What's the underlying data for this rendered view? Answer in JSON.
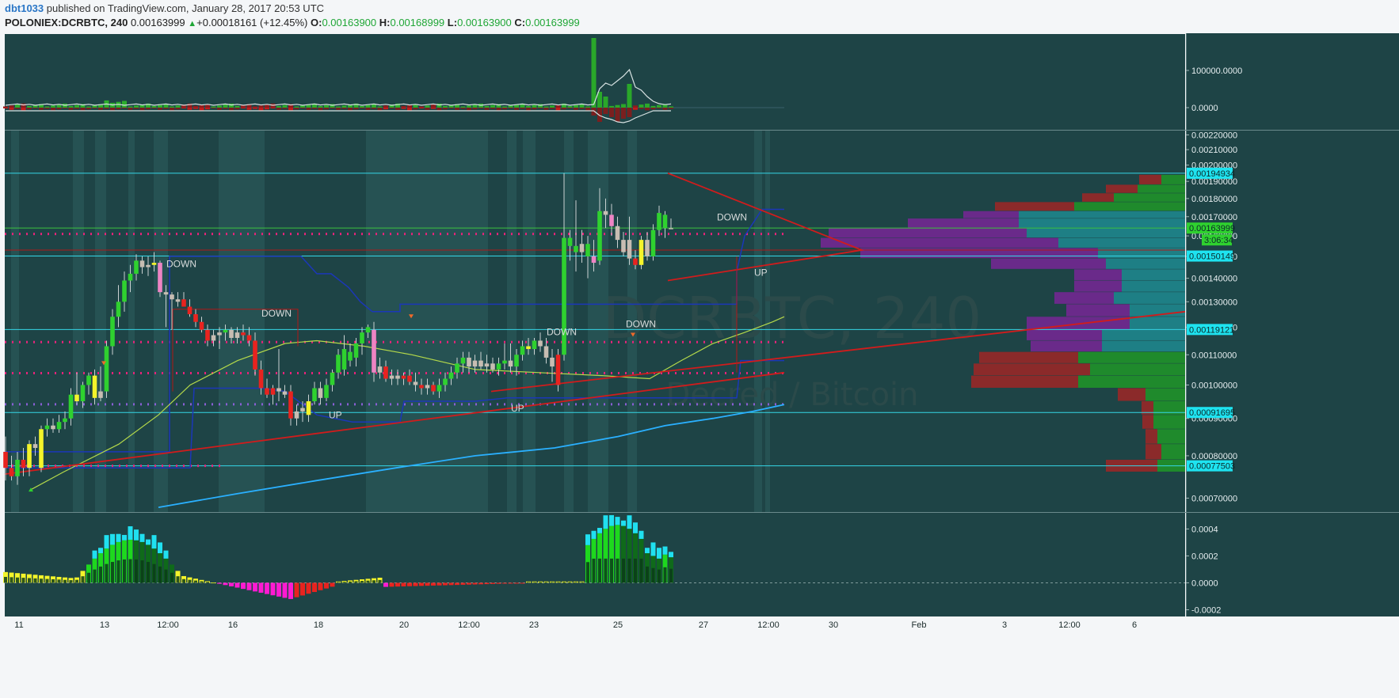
{
  "header": {
    "author": "dbt1033",
    "published_text": "published on TradingView.com, January 28, 2017 20:53 UTC",
    "symbol_interval": "POLONIEX:DCRBTC, 240",
    "last": "0.00163999",
    "change_arrow": "▲",
    "change": "+0.00018161 (+12.45%)",
    "o_label": "O:",
    "o_value": "0.00163900",
    "h_label": "H:",
    "h_value": "0.00168999",
    "l_label": "L:",
    "l_value": "0.00163900",
    "c_label": "C:",
    "c_value": "0.00163999"
  },
  "watermark": {
    "symbol": "DCRBTC, 240",
    "description": "Decred / Bitcoin"
  },
  "colors": {
    "panel_bg": "#1e4446",
    "band": "#2b5a5a",
    "up": "#2fd12f",
    "down": "#e8231f",
    "neutral": "#c7bdb2",
    "yellow": "#f4f42a",
    "pink": "#ee84c4",
    "cyan_line": "#35d6e6",
    "dark_blue": "#1b37b8",
    "light_blue": "#2ab0ff",
    "olive": "#b4d94a",
    "trend_red": "#d11c1c"
  },
  "chart_data": [
    {
      "panel": "price",
      "type": "candlestick",
      "yscale": "log",
      "ylim": [
        0.00067,
        0.00223
      ],
      "y_ticks": [
        "0.00220000",
        "0.00210000",
        "0.00200000",
        "0.00190000",
        "0.00180000",
        "0.00170000",
        "0.00160000",
        "0.00150000",
        "0.00140000",
        "0.00130000",
        "0.00120000",
        "0.00110000",
        "0.00100000",
        "0.00090000",
        "0.00080000",
        "0.00070000"
      ],
      "x_ticks": [
        "11",
        "13",
        "12:00",
        "16",
        "18",
        "20",
        "12:00",
        "23",
        "25",
        "27",
        "12:00",
        "30",
        "Feb",
        "3",
        "12:00",
        "6"
      ],
      "price_tags": [
        {
          "value": 0.00194934,
          "label": "0.00194934"
        },
        {
          "value": 0.00163999,
          "label": "0.00163999"
        },
        {
          "value": 0.00150149,
          "label": "0.00150149"
        },
        {
          "value": 0.00119121,
          "label": "0.00119121"
        },
        {
          "value": 0.00091695,
          "label": "0.00091695"
        },
        {
          "value": 0.00077503,
          "label": "0.00077503"
        }
      ],
      "countdown": "3:06:34",
      "annotations": [
        "DOWN",
        "DOWN",
        "UP",
        "DOWN",
        "UP",
        "DOWN",
        "DOWN",
        "UP"
      ],
      "candles_first_x": 7,
      "candle_spacing": 7.5,
      "candles": [
        {
          "o": 0.00081,
          "h": 0.00085,
          "l": 0.00074,
          "c": 0.00077,
          "col": "down"
        },
        {
          "o": 0.00077,
          "h": 0.0008,
          "l": 0.00074,
          "c": 0.00075,
          "col": "down"
        },
        {
          "o": 0.00075,
          "h": 0.00081,
          "l": 0.00073,
          "c": 0.00079,
          "col": "up"
        },
        {
          "o": 0.00079,
          "h": 0.00082,
          "l": 0.00075,
          "c": 0.00077,
          "col": "down"
        },
        {
          "o": 0.00077,
          "h": 0.00084,
          "l": 0.00075,
          "c": 0.00083,
          "col": "yellow"
        },
        {
          "o": 0.00083,
          "h": 0.00085,
          "l": 0.0008,
          "c": 0.00082,
          "col": "neutral"
        },
        {
          "o": 0.00077,
          "h": 0.00088,
          "l": 0.00076,
          "c": 0.00087,
          "col": "yellow"
        },
        {
          "o": 0.00087,
          "h": 0.0009,
          "l": 0.00085,
          "c": 0.00088,
          "col": "up"
        },
        {
          "o": 0.00088,
          "h": 0.0009,
          "l": 0.00086,
          "c": 0.00087,
          "col": "neutral"
        },
        {
          "o": 0.00087,
          "h": 0.00091,
          "l": 0.00086,
          "c": 0.00089,
          "col": "up"
        },
        {
          "o": 0.00089,
          "h": 0.00092,
          "l": 0.00087,
          "c": 0.0009,
          "col": "up"
        },
        {
          "o": 0.0009,
          "h": 0.00099,
          "l": 0.00088,
          "c": 0.00097,
          "col": "up"
        },
        {
          "o": 0.00097,
          "h": 0.00104,
          "l": 0.00094,
          "c": 0.00095,
          "col": "yellow"
        },
        {
          "o": 0.00095,
          "h": 0.00101,
          "l": 0.00093,
          "c": 0.001,
          "col": "up"
        },
        {
          "o": 0.001,
          "h": 0.00104,
          "l": 0.00097,
          "c": 0.00103,
          "col": "up"
        },
        {
          "o": 0.00103,
          "h": 0.00105,
          "l": 0.00094,
          "c": 0.00096,
          "col": "yellow"
        },
        {
          "o": 0.00096,
          "h": 0.00106,
          "l": 0.00095,
          "c": 0.00098,
          "col": "neutral"
        },
        {
          "o": 0.00098,
          "h": 0.00115,
          "l": 0.00096,
          "c": 0.00113,
          "col": "up"
        },
        {
          "o": 0.00113,
          "h": 0.00127,
          "l": 0.0011,
          "c": 0.00124,
          "col": "up"
        },
        {
          "o": 0.00124,
          "h": 0.00137,
          "l": 0.0012,
          "c": 0.0013,
          "col": "up"
        },
        {
          "o": 0.0013,
          "h": 0.00143,
          "l": 0.00126,
          "c": 0.00139,
          "col": "up"
        },
        {
          "o": 0.00139,
          "h": 0.00146,
          "l": 0.00134,
          "c": 0.00142,
          "col": "up"
        },
        {
          "o": 0.00142,
          "h": 0.00151,
          "l": 0.00139,
          "c": 0.00148,
          "col": "up"
        },
        {
          "o": 0.00148,
          "h": 0.0015,
          "l": 0.00142,
          "c": 0.00145,
          "col": "neutral"
        },
        {
          "o": 0.00145,
          "h": 0.0015,
          "l": 0.00141,
          "c": 0.00146,
          "col": "neutral"
        },
        {
          "o": 0.00146,
          "h": 0.00152,
          "l": 0.00143,
          "c": 0.00147,
          "col": "yellow"
        },
        {
          "o": 0.00147,
          "h": 0.00148,
          "l": 0.00132,
          "c": 0.00134,
          "col": "pink"
        },
        {
          "o": 0.00134,
          "h": 0.00137,
          "l": 0.0012,
          "c": 0.00133,
          "col": "neutral"
        },
        {
          "o": 0.00133,
          "h": 0.00134,
          "l": 0.00119,
          "c": 0.00131,
          "col": "neutral"
        },
        {
          "o": 0.00131,
          "h": 0.00134,
          "l": 0.00128,
          "c": 0.0013,
          "col": "neutral"
        },
        {
          "o": 0.00131,
          "h": 0.00134,
          "l": 0.00128,
          "c": 0.00128,
          "col": "down"
        },
        {
          "o": 0.00128,
          "h": 0.00131,
          "l": 0.00124,
          "c": 0.00125,
          "col": "down"
        },
        {
          "o": 0.00125,
          "h": 0.00127,
          "l": 0.0012,
          "c": 0.00122,
          "col": "down"
        },
        {
          "o": 0.00122,
          "h": 0.00124,
          "l": 0.00118,
          "c": 0.00119,
          "col": "down"
        },
        {
          "o": 0.00119,
          "h": 0.00121,
          "l": 0.00113,
          "c": 0.00115,
          "col": "down"
        },
        {
          "o": 0.00115,
          "h": 0.00119,
          "l": 0.00113,
          "c": 0.00117,
          "col": "neutral"
        },
        {
          "o": 0.00117,
          "h": 0.0012,
          "l": 0.00112,
          "c": 0.00118,
          "col": "neutral"
        },
        {
          "o": 0.00118,
          "h": 0.00121,
          "l": 0.00115,
          "c": 0.00119,
          "col": "up"
        },
        {
          "o": 0.00119,
          "h": 0.0012,
          "l": 0.00114,
          "c": 0.00116,
          "col": "neutral"
        },
        {
          "o": 0.00116,
          "h": 0.0012,
          "l": 0.00114,
          "c": 0.00118,
          "col": "neutral"
        },
        {
          "o": 0.00118,
          "h": 0.00121,
          "l": 0.00115,
          "c": 0.00117,
          "col": "down"
        },
        {
          "o": 0.00117,
          "h": 0.0012,
          "l": 0.00113,
          "c": 0.00115,
          "col": "down"
        },
        {
          "o": 0.00115,
          "h": 0.00118,
          "l": 0.00103,
          "c": 0.00105,
          "col": "down"
        },
        {
          "o": 0.00105,
          "h": 0.00108,
          "l": 0.00097,
          "c": 0.00099,
          "col": "down"
        },
        {
          "o": 0.00099,
          "h": 0.00102,
          "l": 0.00096,
          "c": 0.00097,
          "col": "down"
        },
        {
          "o": 0.00097,
          "h": 0.001,
          "l": 0.00094,
          "c": 0.00099,
          "col": "down"
        },
        {
          "o": 0.00099,
          "h": 0.00112,
          "l": 0.00095,
          "c": 0.00098,
          "col": "neutral"
        },
        {
          "o": 0.00098,
          "h": 0.001,
          "l": 0.00096,
          "c": 0.00097,
          "col": "neutral"
        },
        {
          "o": 0.00098,
          "h": 0.001,
          "l": 0.00088,
          "c": 0.0009,
          "col": "down"
        },
        {
          "o": 0.0009,
          "h": 0.00094,
          "l": 0.00088,
          "c": 0.00092,
          "col": "neutral"
        },
        {
          "o": 0.00092,
          "h": 0.00095,
          "l": 0.00089,
          "c": 0.00093,
          "col": "neutral"
        },
        {
          "o": 0.00091,
          "h": 0.00097,
          "l": 0.00089,
          "c": 0.00095,
          "col": "yellow"
        },
        {
          "o": 0.00095,
          "h": 0.00101,
          "l": 0.00094,
          "c": 0.00099,
          "col": "up"
        },
        {
          "o": 0.00099,
          "h": 0.00101,
          "l": 0.00094,
          "c": 0.00096,
          "col": "neutral"
        },
        {
          "o": 0.00096,
          "h": 0.00102,
          "l": 0.00095,
          "c": 0.001,
          "col": "up"
        },
        {
          "o": 0.001,
          "h": 0.00105,
          "l": 0.00098,
          "c": 0.00104,
          "col": "up"
        },
        {
          "o": 0.00104,
          "h": 0.00112,
          "l": 0.00102,
          "c": 0.0011,
          "col": "up"
        },
        {
          "o": 0.00105,
          "h": 0.00117,
          "l": 0.00103,
          "c": 0.00112,
          "col": "up"
        },
        {
          "o": 0.00108,
          "h": 0.00114,
          "l": 0.00106,
          "c": 0.00111,
          "col": "up"
        },
        {
          "o": 0.00109,
          "h": 0.00116,
          "l": 0.00106,
          "c": 0.00114,
          "col": "up"
        },
        {
          "o": 0.00114,
          "h": 0.0012,
          "l": 0.0011,
          "c": 0.00118,
          "col": "up"
        },
        {
          "o": 0.00118,
          "h": 0.00121,
          "l": 0.00116,
          "c": 0.0012,
          "col": "up"
        },
        {
          "o": 0.00119,
          "h": 0.00122,
          "l": 0.00101,
          "c": 0.00104,
          "col": "pink"
        },
        {
          "o": 0.00104,
          "h": 0.00109,
          "l": 0.00102,
          "c": 0.00106,
          "col": "neutral"
        },
        {
          "o": 0.00106,
          "h": 0.00108,
          "l": 0.00101,
          "c": 0.00102,
          "col": "down"
        },
        {
          "o": 0.00102,
          "h": 0.00105,
          "l": 0.001,
          "c": 0.00103,
          "col": "neutral"
        },
        {
          "o": 0.00103,
          "h": 0.00105,
          "l": 0.001,
          "c": 0.00102,
          "col": "neutral"
        },
        {
          "o": 0.00102,
          "h": 0.00104,
          "l": 0.001,
          "c": 0.00103,
          "col": "down"
        },
        {
          "o": 0.00103,
          "h": 0.00105,
          "l": 0.001,
          "c": 0.00101,
          "col": "down"
        },
        {
          "o": 0.00101,
          "h": 0.00104,
          "l": 0.00098,
          "c": 0.001,
          "col": "neutral"
        },
        {
          "o": 0.001,
          "h": 0.00102,
          "l": 0.00097,
          "c": 0.00099,
          "col": "down"
        },
        {
          "o": 0.00099,
          "h": 0.00102,
          "l": 0.00097,
          "c": 0.001,
          "col": "neutral"
        },
        {
          "o": 0.001,
          "h": 0.00101,
          "l": 0.00097,
          "c": 0.00098,
          "col": "down"
        },
        {
          "o": 0.00098,
          "h": 0.00102,
          "l": 0.00096,
          "c": 0.001,
          "col": "up"
        },
        {
          "o": 0.001,
          "h": 0.00104,
          "l": 0.00098,
          "c": 0.00102,
          "col": "up"
        },
        {
          "o": 0.00102,
          "h": 0.00106,
          "l": 0.001,
          "c": 0.00104,
          "col": "up"
        },
        {
          "o": 0.00104,
          "h": 0.00109,
          "l": 0.00102,
          "c": 0.00107,
          "col": "up"
        },
        {
          "o": 0.00107,
          "h": 0.00111,
          "l": 0.00104,
          "c": 0.00109,
          "col": "up"
        },
        {
          "o": 0.00109,
          "h": 0.00111,
          "l": 0.00104,
          "c": 0.00106,
          "col": "neutral"
        },
        {
          "o": 0.00106,
          "h": 0.0011,
          "l": 0.00104,
          "c": 0.00108,
          "col": "neutral"
        },
        {
          "o": 0.00108,
          "h": 0.00111,
          "l": 0.00105,
          "c": 0.00106,
          "col": "neutral"
        },
        {
          "o": 0.00106,
          "h": 0.0011,
          "l": 0.00104,
          "c": 0.00107,
          "col": "neutral"
        },
        {
          "o": 0.00107,
          "h": 0.00109,
          "l": 0.00104,
          "c": 0.00105,
          "col": "neutral"
        },
        {
          "o": 0.00105,
          "h": 0.00109,
          "l": 0.00103,
          "c": 0.00107,
          "col": "up"
        },
        {
          "o": 0.00107,
          "h": 0.00114,
          "l": 0.00105,
          "c": 0.00108,
          "col": "up"
        },
        {
          "o": 0.00108,
          "h": 0.00114,
          "l": 0.00104,
          "c": 0.00106,
          "col": "neutral"
        },
        {
          "o": 0.00106,
          "h": 0.00112,
          "l": 0.00103,
          "c": 0.0011,
          "col": "up"
        },
        {
          "o": 0.0011,
          "h": 0.00115,
          "l": 0.00108,
          "c": 0.00113,
          "col": "up"
        },
        {
          "o": 0.00113,
          "h": 0.00116,
          "l": 0.0011,
          "c": 0.00112,
          "col": "yellow"
        },
        {
          "o": 0.00112,
          "h": 0.00116,
          "l": 0.0011,
          "c": 0.00115,
          "col": "up"
        },
        {
          "o": 0.00115,
          "h": 0.00118,
          "l": 0.00111,
          "c": 0.00113,
          "col": "neutral"
        },
        {
          "o": 0.00113,
          "h": 0.00116,
          "l": 0.00107,
          "c": 0.00109,
          "col": "neutral"
        },
        {
          "o": 0.00109,
          "h": 0.00112,
          "l": 0.00101,
          "c": 0.00106,
          "col": "neutral"
        },
        {
          "o": 0.001,
          "h": 0.00112,
          "l": 0.00098,
          "c": 0.0011,
          "col": "down"
        },
        {
          "o": 0.0011,
          "h": 0.00195,
          "l": 0.00108,
          "c": 0.00159,
          "col": "up"
        },
        {
          "o": 0.00159,
          "h": 0.00163,
          "l": 0.00148,
          "c": 0.00155,
          "col": "up"
        },
        {
          "o": 0.00155,
          "h": 0.00179,
          "l": 0.00143,
          "c": 0.00152,
          "col": "up"
        },
        {
          "o": 0.00152,
          "h": 0.00163,
          "l": 0.00147,
          "c": 0.00156,
          "col": "neutral"
        },
        {
          "o": 0.00156,
          "h": 0.0016,
          "l": 0.0014,
          "c": 0.0015,
          "col": "up"
        },
        {
          "o": 0.0015,
          "h": 0.00158,
          "l": 0.00143,
          "c": 0.00147,
          "col": "pink"
        },
        {
          "o": 0.00148,
          "h": 0.00186,
          "l": 0.00146,
          "c": 0.00173,
          "col": "up"
        },
        {
          "o": 0.00173,
          "h": 0.0018,
          "l": 0.00164,
          "c": 0.00171,
          "col": "neutral"
        },
        {
          "o": 0.00171,
          "h": 0.00177,
          "l": 0.0016,
          "c": 0.00165,
          "col": "pink"
        },
        {
          "o": 0.00165,
          "h": 0.0017,
          "l": 0.00154,
          "c": 0.00158,
          "col": "neutral"
        },
        {
          "o": 0.00158,
          "h": 0.00162,
          "l": 0.0015,
          "c": 0.00152,
          "col": "neutral"
        },
        {
          "o": 0.00158,
          "h": 0.0017,
          "l": 0.00146,
          "c": 0.00149,
          "col": "neutral"
        },
        {
          "o": 0.00149,
          "h": 0.00153,
          "l": 0.00144,
          "c": 0.00146,
          "col": "down"
        },
        {
          "o": 0.00146,
          "h": 0.0016,
          "l": 0.00144,
          "c": 0.00158,
          "col": "yellow"
        },
        {
          "o": 0.00158,
          "h": 0.00162,
          "l": 0.00148,
          "c": 0.0015,
          "col": "neutral"
        },
        {
          "o": 0.0015,
          "h": 0.00166,
          "l": 0.00148,
          "c": 0.00163,
          "col": "up"
        },
        {
          "o": 0.00163,
          "h": 0.00176,
          "l": 0.0016,
          "c": 0.00172,
          "col": "up"
        },
        {
          "o": 0.00164,
          "h": 0.00173,
          "l": 0.00159,
          "c": 0.00171,
          "col": "up"
        },
        {
          "o": 0.00164,
          "h": 0.00169,
          "l": 0.00164,
          "c": 0.00164,
          "col": "neutral"
        }
      ]
    },
    {
      "panel": "volume_oscillator",
      "type": "bar",
      "y_ticks": [
        "100000.0000",
        "0.0000"
      ]
    },
    {
      "panel": "momentum_histogram",
      "type": "bar",
      "y_ticks": [
        "0.0004",
        "0.0002",
        "0.0000",
        "-0.0002"
      ],
      "ylim": [
        -0.00025,
        0.00052
      ]
    }
  ]
}
